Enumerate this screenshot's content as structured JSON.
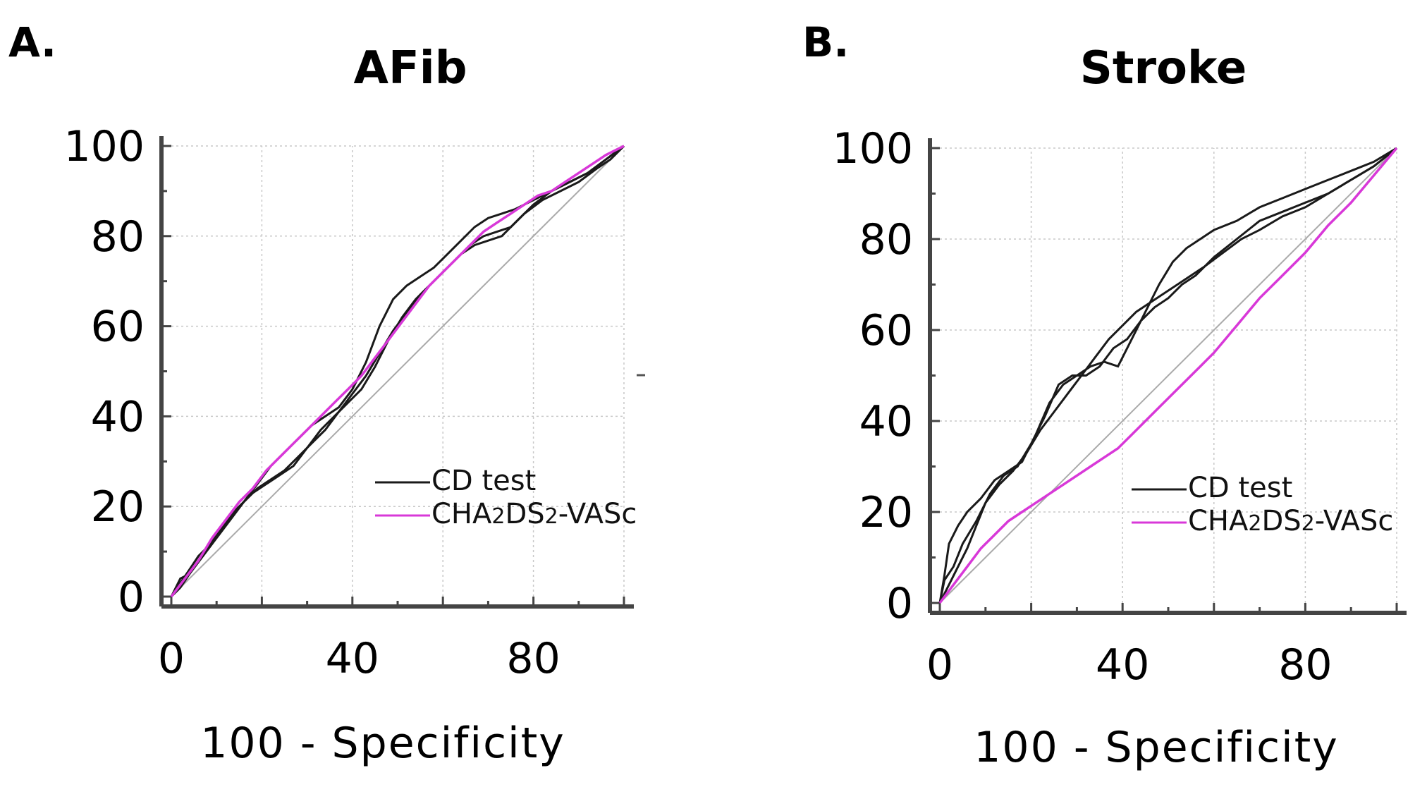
{
  "chart_data": [
    {
      "type": "line",
      "panel_label": "A.",
      "title": "AFib",
      "xlabel": "100 - Specificity",
      "ylabel": "",
      "xlim": [
        0,
        100
      ],
      "ylim": [
        0,
        100
      ],
      "xticks": [
        "0",
        "40",
        "80"
      ],
      "yticks": [
        "0",
        "20",
        "40",
        "60",
        "80",
        "100"
      ],
      "grid": true,
      "legend_position": "bottom-right",
      "legend": [
        {
          "label": "CD test",
          "color": "#1a1a1a"
        },
        {
          "label": "CHA2DS2-VASc",
          "color": "#d838d8"
        }
      ],
      "series": [
        {
          "name": "CD test",
          "kind": "cd",
          "x": [
            0,
            2,
            4,
            6,
            8,
            10,
            13,
            16,
            19,
            22,
            25,
            28,
            31,
            34,
            37,
            40,
            43,
            46,
            49,
            52,
            55,
            58,
            61,
            64,
            67,
            70,
            73,
            76,
            80,
            84,
            88,
            92,
            96,
            100
          ],
          "y": [
            0,
            4,
            5,
            8,
            11,
            14,
            18,
            21,
            24,
            26,
            28,
            31,
            34,
            37,
            41,
            45,
            49,
            54,
            59,
            63,
            67,
            70,
            73,
            76,
            78,
            79,
            80,
            83,
            87,
            90,
            92,
            94,
            97,
            100
          ]
        },
        {
          "name": "CD test",
          "kind": "cd",
          "x": [
            0,
            2,
            4,
            6,
            9,
            12,
            15,
            18,
            21,
            24,
            27,
            30,
            33,
            36,
            39,
            42,
            45,
            48,
            51,
            54,
            57,
            60,
            63,
            66,
            69,
            72,
            75,
            78,
            82,
            86,
            90,
            94,
            97,
            100
          ],
          "y": [
            0,
            3,
            6,
            9,
            12,
            16,
            20,
            23,
            25,
            27,
            29,
            33,
            37,
            40,
            43,
            46,
            51,
            57,
            62,
            66,
            69,
            72,
            75,
            78,
            80,
            81,
            82,
            85,
            88,
            90,
            92,
            95,
            97,
            100
          ]
        },
        {
          "name": "CD test",
          "kind": "cd",
          "x": [
            0,
            2,
            4,
            7,
            10,
            13,
            16,
            19,
            22,
            25,
            28,
            31,
            34,
            37,
            40,
            43,
            46,
            49,
            52,
            55,
            58,
            61,
            64,
            67,
            70,
            73,
            76,
            80,
            84,
            88,
            92,
            96,
            100
          ],
          "y": [
            0,
            2,
            5,
            9,
            13,
            17,
            21,
            25,
            29,
            32,
            35,
            38,
            40,
            42,
            46,
            52,
            60,
            66,
            69,
            71,
            73,
            76,
            79,
            82,
            84,
            85,
            86,
            88,
            90,
            92,
            94,
            97,
            100
          ]
        },
        {
          "name": "CHA2DS2-VASc",
          "kind": "cha",
          "x": [
            0,
            3,
            6,
            9,
            12,
            15,
            18,
            21,
            24,
            27,
            30,
            33,
            36,
            39,
            42,
            45,
            48,
            51,
            54,
            57,
            60,
            63,
            66,
            69,
            72,
            75,
            78,
            81,
            84,
            87,
            90,
            93,
            96,
            100
          ],
          "y": [
            0,
            4,
            8,
            13,
            17,
            21,
            24,
            28,
            31,
            34,
            37,
            40,
            43,
            46,
            49,
            53,
            57,
            61,
            65,
            69,
            72,
            75,
            78,
            81,
            83,
            85,
            87,
            89,
            90,
            92,
            94,
            96,
            98,
            100
          ]
        }
      ]
    },
    {
      "type": "line",
      "panel_label": "B.",
      "title": "Stroke",
      "xlabel": "100 - Specificity",
      "ylabel": "",
      "xlim": [
        0,
        100
      ],
      "ylim": [
        0,
        100
      ],
      "xticks": [
        "0",
        "40",
        "80"
      ],
      "yticks": [
        "0",
        "20",
        "40",
        "60",
        "80",
        "100"
      ],
      "grid": true,
      "legend_position": "bottom-right",
      "legend": [
        {
          "label": "CD test",
          "color": "#1a1a1a"
        },
        {
          "label": "CHA2DS2-VASc",
          "color": "#d838d8"
        }
      ],
      "series": [
        {
          "name": "CD test",
          "kind": "cd",
          "x": [
            0,
            1,
            2,
            4,
            6,
            9,
            12,
            15,
            18,
            21,
            24,
            27,
            30,
            33,
            36,
            39,
            42,
            45,
            48,
            51,
            54,
            57,
            60,
            65,
            70,
            75,
            80,
            85,
            90,
            95,
            100
          ],
          "y": [
            0,
            6,
            13,
            17,
            20,
            23,
            27,
            29,
            31,
            37,
            44,
            48,
            50,
            52,
            53,
            52,
            58,
            64,
            70,
            75,
            78,
            80,
            82,
            84,
            87,
            89,
            91,
            93,
            95,
            97,
            100
          ]
        },
        {
          "name": "CD test",
          "kind": "cd",
          "x": [
            0,
            1,
            3,
            5,
            8,
            11,
            14,
            17,
            20,
            23,
            26,
            29,
            32,
            35,
            38,
            41,
            44,
            47,
            50,
            53,
            56,
            60,
            65,
            70,
            75,
            80,
            85,
            90,
            95,
            100
          ],
          "y": [
            0,
            5,
            8,
            13,
            18,
            24,
            28,
            30,
            35,
            41,
            48,
            50,
            50,
            52,
            56,
            58,
            62,
            65,
            67,
            70,
            72,
            76,
            80,
            84,
            86,
            88,
            90,
            93,
            96,
            100
          ]
        },
        {
          "name": "CD test",
          "kind": "cd",
          "x": [
            0,
            2,
            4,
            6,
            8,
            10,
            13,
            16,
            19,
            22,
            25,
            28,
            31,
            34,
            37,
            40,
            43,
            46,
            49,
            52,
            55,
            58,
            62,
            66,
            70,
            75,
            80,
            85,
            90,
            95,
            100
          ],
          "y": [
            0,
            4,
            8,
            12,
            17,
            22,
            26,
            29,
            33,
            38,
            42,
            46,
            50,
            54,
            58,
            61,
            64,
            66,
            68,
            70,
            72,
            74,
            77,
            80,
            82,
            85,
            87,
            90,
            93,
            96,
            100
          ]
        },
        {
          "name": "CHA2DS2-VASc",
          "kind": "cha",
          "x": [
            0,
            3,
            6,
            9,
            12,
            15,
            18,
            21,
            24,
            27,
            30,
            33,
            36,
            39,
            42,
            45,
            48,
            51,
            54,
            57,
            60,
            65,
            70,
            75,
            80,
            85,
            90,
            95,
            100
          ],
          "y": [
            0,
            4,
            8,
            12,
            15,
            18,
            20,
            22,
            24,
            26,
            28,
            30,
            32,
            34,
            37,
            40,
            43,
            46,
            49,
            52,
            55,
            61,
            67,
            72,
            77,
            83,
            88,
            94,
            100
          ]
        }
      ]
    }
  ]
}
